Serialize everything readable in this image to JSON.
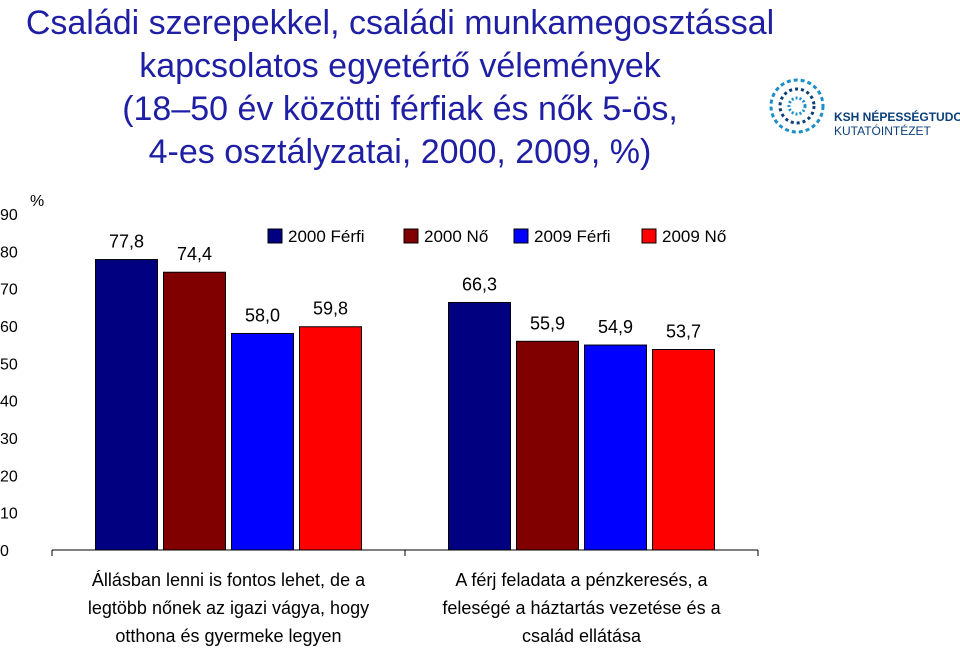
{
  "title_lines": [
    "Családi szerepekkel, családi munkamegosztással",
    "kapcsolatos egyetértő vélemények",
    "(18–50 év közötti férfiak és nők 5-ös,",
    "4-es osztályzatai, 2000, 2009, %)"
  ],
  "logo": {
    "line1": "KSH NÉPESSÉGTUDOMÁNYI",
    "line2": "KUTATÓINTÉZET",
    "icon": "ksh-logo-icon"
  },
  "chart_data": {
    "type": "bar",
    "title": "Családi szerepekkel, családi munkamegosztással kapcsolatos egyetértő vélemények (18–50 év közötti férfiak és nők 5-ös, 4-es osztályzatai, 2000, 2009, %)",
    "ylabel": "%",
    "ylim": [
      0,
      90
    ],
    "yticks": [
      0,
      10,
      20,
      30,
      40,
      50,
      60,
      70,
      80,
      90
    ],
    "grid": false,
    "legend_position": "top-right",
    "categories": [
      [
        "Állásban lenni is fontos lehet, de a",
        "legtöbb nőnek az igazi vágya, hogy",
        "otthona és gyermeke legyen"
      ],
      [
        "A férj feladata a pénzkeresés, a",
        "feleségé a háztartás vezetése és a",
        "család ellátása"
      ]
    ],
    "series": [
      {
        "name": "2000 Férfi",
        "color": "#000080",
        "values": [
          77.8,
          66.3
        ],
        "labels": [
          "77,8",
          "66,3"
        ]
      },
      {
        "name": "2000 Nő",
        "color": "#800000",
        "values": [
          74.4,
          55.9
        ],
        "labels": [
          "74,4",
          "55,9"
        ]
      },
      {
        "name": "2009 Férfi",
        "color": "#0000ff",
        "values": [
          58.0,
          54.9
        ],
        "labels": [
          "58,0",
          "54,9"
        ]
      },
      {
        "name": "2009 Nő",
        "color": "#ff0000",
        "values": [
          59.8,
          53.7
        ],
        "labels": [
          "59,8",
          "53,7"
        ]
      }
    ]
  }
}
